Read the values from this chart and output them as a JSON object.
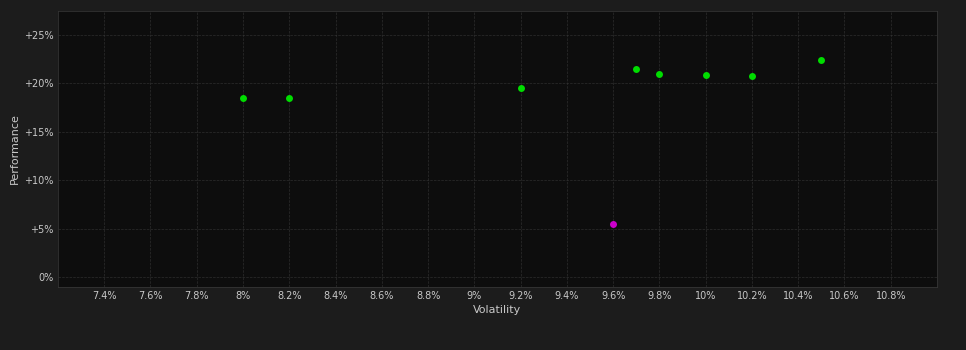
{
  "background_color": "#1c1c1c",
  "plot_bg_color": "#0d0d0d",
  "grid_color": "#3a3a3a",
  "text_color": "#c8c8c8",
  "green_points": [
    [
      0.08,
      0.185
    ],
    [
      0.082,
      0.185
    ],
    [
      0.092,
      0.195
    ],
    [
      0.097,
      0.215
    ],
    [
      0.098,
      0.21
    ],
    [
      0.1,
      0.209
    ],
    [
      0.102,
      0.208
    ],
    [
      0.105,
      0.224
    ]
  ],
  "magenta_points": [
    [
      0.096,
      0.055
    ]
  ],
  "green_color": "#00dd00",
  "magenta_color": "#cc00cc",
  "xlabel": "Volatility",
  "ylabel": "Performance",
  "xlim": [
    0.072,
    0.11
  ],
  "ylim": [
    -0.01,
    0.275
  ],
  "xtick_values": [
    0.074,
    0.076,
    0.078,
    0.08,
    0.082,
    0.084,
    0.086,
    0.088,
    0.09,
    0.092,
    0.094,
    0.096,
    0.098,
    0.1,
    0.102,
    0.104,
    0.106,
    0.108
  ],
  "xtick_labels": [
    "7.4%",
    "7.6%",
    "7.8%",
    "8%",
    "8.2%",
    "8.4%",
    "8.6%",
    "8.8%",
    "9%",
    "9.2%",
    "9.4%",
    "9.6%",
    "9.8%",
    "10%",
    "10.2%",
    "10.4%",
    "10.6%",
    "10.8%"
  ],
  "ytick_values": [
    0.0,
    0.05,
    0.1,
    0.15,
    0.2,
    0.25
  ],
  "ytick_labels": [
    "0%",
    "+5%",
    "+10%",
    "+15%",
    "+20%",
    "+25%"
  ],
  "marker_size": 25
}
